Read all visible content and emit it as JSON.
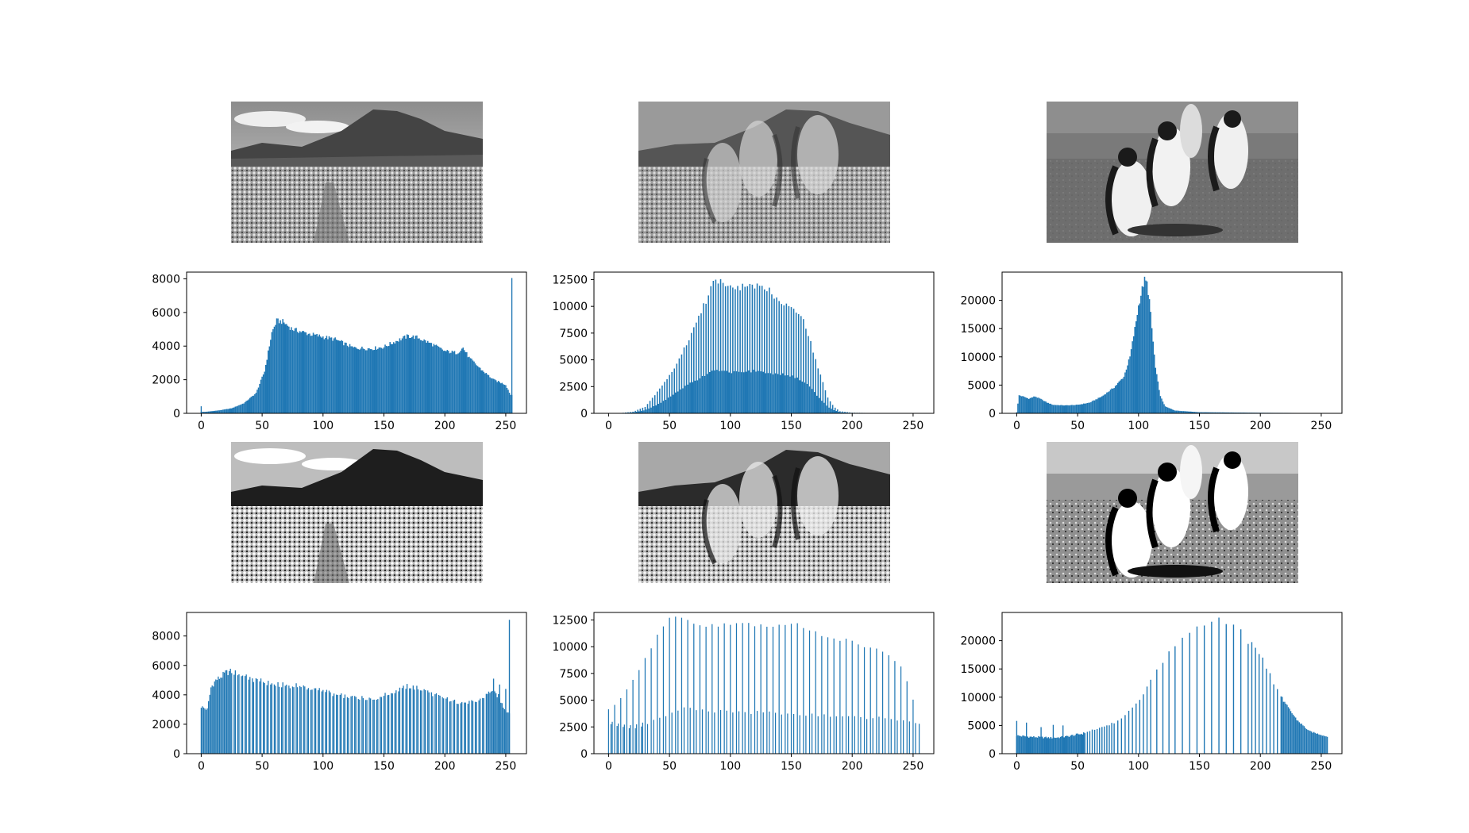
{
  "images": [
    {
      "depicts": "mountain-landscape-grayscale"
    },
    {
      "depicts": "mountain-penguin-hybrid-grayscale"
    },
    {
      "depicts": "penguins-grayscale"
    },
    {
      "depicts": "mountain-landscape-equalized"
    },
    {
      "depicts": "mountain-penguin-hybrid-equalized"
    },
    {
      "depicts": "penguins-equalized"
    }
  ],
  "colors": {
    "bar": "#1f77b4"
  },
  "chart_data": [
    {
      "type": "bar",
      "title": "",
      "xlabel": "",
      "ylabel": "",
      "xlim": [
        -12,
        267
      ],
      "ylim": [
        0,
        8400
      ],
      "xticks": [
        0,
        50,
        100,
        150,
        200,
        250
      ],
      "yticks": [
        0,
        2000,
        4000,
        6000,
        8000
      ],
      "x_range": [
        0,
        255
      ],
      "bar_pattern": "all",
      "profile": [
        [
          0,
          80
        ],
        [
          5,
          100
        ],
        [
          15,
          180
        ],
        [
          25,
          300
        ],
        [
          35,
          600
        ],
        [
          45,
          1200
        ],
        [
          52,
          2500
        ],
        [
          58,
          4800
        ],
        [
          62,
          5500
        ],
        [
          67,
          5450
        ],
        [
          75,
          5000
        ],
        [
          90,
          4700
        ],
        [
          110,
          4400
        ],
        [
          125,
          3900
        ],
        [
          140,
          3850
        ],
        [
          150,
          3950
        ],
        [
          160,
          4300
        ],
        [
          170,
          4600
        ],
        [
          178,
          4500
        ],
        [
          190,
          4100
        ],
        [
          200,
          3700
        ],
        [
          210,
          3600
        ],
        [
          215,
          3900
        ],
        [
          220,
          3300
        ],
        [
          230,
          2600
        ],
        [
          240,
          2000
        ],
        [
          250,
          1700
        ],
        [
          254,
          1100
        ]
      ],
      "spikes": [
        [
          0,
          420
        ],
        [
          255,
          8050
        ]
      ]
    },
    {
      "type": "bar",
      "title": "",
      "xlabel": "",
      "ylabel": "",
      "xlim": [
        -12,
        267
      ],
      "ylim": [
        0,
        13200
      ],
      "xticks": [
        0,
        50,
        100,
        150,
        200,
        250
      ],
      "yticks": [
        0,
        2500,
        5000,
        7500,
        10000,
        12500
      ],
      "x_range": [
        0,
        255
      ],
      "bar_pattern": "alternate",
      "profile_high": [
        [
          0,
          0
        ],
        [
          10,
          30
        ],
        [
          20,
          150
        ],
        [
          30,
          600
        ],
        [
          40,
          2000
        ],
        [
          50,
          3500
        ],
        [
          60,
          5500
        ],
        [
          70,
          8000
        ],
        [
          80,
          10500
        ],
        [
          87,
          12600
        ],
        [
          95,
          12000
        ],
        [
          105,
          11800
        ],
        [
          120,
          11800
        ],
        [
          130,
          11700
        ],
        [
          140,
          10600
        ],
        [
          150,
          10000
        ],
        [
          155,
          9500
        ],
        [
          160,
          8800
        ],
        [
          165,
          7000
        ],
        [
          170,
          5000
        ],
        [
          175,
          3200
        ],
        [
          180,
          1500
        ],
        [
          185,
          600
        ],
        [
          190,
          200
        ],
        [
          200,
          60
        ],
        [
          220,
          20
        ],
        [
          240,
          5
        ],
        [
          255,
          0
        ]
      ],
      "profile_low": [
        [
          0,
          0
        ],
        [
          10,
          20
        ],
        [
          20,
          80
        ],
        [
          30,
          300
        ],
        [
          40,
          800
        ],
        [
          50,
          1500
        ],
        [
          60,
          2300
        ],
        [
          70,
          3000
        ],
        [
          80,
          3600
        ],
        [
          87,
          4100
        ],
        [
          95,
          3900
        ],
        [
          110,
          3800
        ],
        [
          120,
          4000
        ],
        [
          130,
          3800
        ],
        [
          140,
          3700
        ],
        [
          150,
          3500
        ],
        [
          160,
          3000
        ],
        [
          165,
          2500
        ],
        [
          170,
          1800
        ],
        [
          175,
          1200
        ],
        [
          180,
          600
        ],
        [
          185,
          300
        ],
        [
          190,
          100
        ],
        [
          200,
          30
        ],
        [
          220,
          10
        ],
        [
          255,
          0
        ]
      ]
    },
    {
      "type": "bar",
      "title": "",
      "xlabel": "",
      "ylabel": "",
      "xlim": [
        -12,
        267
      ],
      "ylim": [
        0,
        25000
      ],
      "xticks": [
        0,
        50,
        100,
        150,
        200,
        250
      ],
      "yticks": [
        0,
        5000,
        10000,
        15000,
        20000
      ],
      "x_range": [
        0,
        255
      ],
      "bar_pattern": "all",
      "profile": [
        [
          0,
          200
        ],
        [
          2,
          3200
        ],
        [
          5,
          3000
        ],
        [
          10,
          2600
        ],
        [
          15,
          3000
        ],
        [
          20,
          2500
        ],
        [
          25,
          1900
        ],
        [
          30,
          1500
        ],
        [
          40,
          1400
        ],
        [
          50,
          1500
        ],
        [
          60,
          1900
        ],
        [
          70,
          3000
        ],
        [
          80,
          4600
        ],
        [
          88,
          6500
        ],
        [
          93,
          10000
        ],
        [
          97,
          15000
        ],
        [
          100,
          19000
        ],
        [
          103,
          22000
        ],
        [
          105,
          23600
        ],
        [
          107,
          23000
        ],
        [
          109,
          20000
        ],
        [
          111,
          15000
        ],
        [
          114,
          8000
        ],
        [
          118,
          3000
        ],
        [
          122,
          1200
        ],
        [
          130,
          500
        ],
        [
          150,
          200
        ],
        [
          200,
          100
        ],
        [
          250,
          50
        ],
        [
          255,
          0
        ]
      ]
    },
    {
      "type": "bar",
      "title": "",
      "xlabel": "",
      "ylabel": "",
      "xlim": [
        -12,
        267
      ],
      "ylim": [
        0,
        9600
      ],
      "xticks": [
        0,
        50,
        100,
        150,
        200,
        250
      ],
      "yticks": [
        0,
        2000,
        4000,
        6000,
        8000
      ],
      "x_range": [
        0,
        253
      ],
      "bar_pattern": "sparse",
      "profile": [
        [
          0,
          3200
        ],
        [
          5,
          3000
        ],
        [
          8,
          4500
        ],
        [
          12,
          5000
        ],
        [
          16,
          5200
        ],
        [
          20,
          5500
        ],
        [
          25,
          5600
        ],
        [
          30,
          5400
        ],
        [
          40,
          5100
        ],
        [
          60,
          4700
        ],
        [
          80,
          4600
        ],
        [
          100,
          4300
        ],
        [
          110,
          4000
        ],
        [
          130,
          3800
        ],
        [
          145,
          3800
        ],
        [
          160,
          4300
        ],
        [
          170,
          4600
        ],
        [
          180,
          4400
        ],
        [
          195,
          3900
        ],
        [
          210,
          3500
        ],
        [
          225,
          3500
        ],
        [
          232,
          3800
        ],
        [
          238,
          4300
        ],
        [
          244,
          3900
        ],
        [
          248,
          3200
        ],
        [
          252,
          2800
        ]
      ],
      "spikes": [
        [
          240,
          5100
        ],
        [
          245,
          4700
        ],
        [
          250,
          4400
        ],
        [
          253,
          9100
        ]
      ]
    },
    {
      "type": "bar",
      "title": "",
      "xlabel": "",
      "ylabel": "",
      "xlim": [
        -12,
        267
      ],
      "ylim": [
        0,
        13200
      ],
      "xticks": [
        0,
        50,
        100,
        150,
        200,
        250
      ],
      "yticks": [
        0,
        2500,
        5000,
        7500,
        10000,
        12500
      ],
      "x_range": [
        0,
        255
      ],
      "bar_pattern": "pairs",
      "profile_high": [
        [
          0,
          4200
        ],
        [
          5,
          4500
        ],
        [
          10,
          5300
        ],
        [
          20,
          6800
        ],
        [
          30,
          9000
        ],
        [
          40,
          11000
        ],
        [
          50,
          12500
        ],
        [
          60,
          12700
        ],
        [
          70,
          12100
        ],
        [
          100,
          12000
        ],
        [
          120,
          12000
        ],
        [
          150,
          12200
        ],
        [
          165,
          11500
        ],
        [
          180,
          11000
        ],
        [
          200,
          10500
        ],
        [
          220,
          9700
        ],
        [
          230,
          9300
        ],
        [
          240,
          8000
        ],
        [
          248,
          6000
        ],
        [
          252,
          4200
        ],
        [
          255,
          2800
        ]
      ],
      "profile_low": [
        [
          0,
          2800
        ],
        [
          10,
          2500
        ],
        [
          20,
          2400
        ],
        [
          30,
          2700
        ],
        [
          40,
          3200
        ],
        [
          50,
          3800
        ],
        [
          60,
          4200
        ],
        [
          80,
          4000
        ],
        [
          100,
          3900
        ],
        [
          140,
          3800
        ],
        [
          170,
          3600
        ],
        [
          200,
          3400
        ],
        [
          230,
          3300
        ],
        [
          245,
          3000
        ],
        [
          255,
          2800
        ]
      ]
    },
    {
      "type": "bar",
      "title": "",
      "xlabel": "",
      "ylabel": "",
      "xlim": [
        -12,
        267
      ],
      "ylim": [
        0,
        25000
      ],
      "xticks": [
        0,
        50,
        100,
        150,
        200,
        250
      ],
      "yticks": [
        0,
        5000,
        10000,
        15000,
        20000
      ],
      "x_range": [
        0,
        255
      ],
      "bar_pattern": "equalized",
      "dense_profile": [
        [
          0,
          3200
        ],
        [
          10,
          3000
        ],
        [
          20,
          2900
        ],
        [
          30,
          2800
        ],
        [
          40,
          3000
        ],
        [
          50,
          3400
        ],
        [
          55,
          3600
        ]
      ],
      "sparse_profile": [
        [
          55,
          3600
        ],
        [
          65,
          4400
        ],
        [
          75,
          5000
        ],
        [
          85,
          6000
        ],
        [
          95,
          8000
        ],
        [
          105,
          11000
        ],
        [
          115,
          14500
        ],
        [
          125,
          18000
        ],
        [
          135,
          21000
        ],
        [
          150,
          23000
        ],
        [
          168,
          23600
        ],
        [
          180,
          23000
        ],
        [
          190,
          20000
        ],
        [
          200,
          17500
        ],
        [
          210,
          13000
        ],
        [
          220,
          9000
        ],
        [
          230,
          6000
        ],
        [
          240,
          4000
        ],
        [
          255,
          3000
        ]
      ],
      "spikes": [
        [
          0,
          5800
        ],
        [
          8,
          5500
        ],
        [
          20,
          4700
        ],
        [
          30,
          5100
        ],
        [
          38,
          5000
        ]
      ]
    }
  ]
}
